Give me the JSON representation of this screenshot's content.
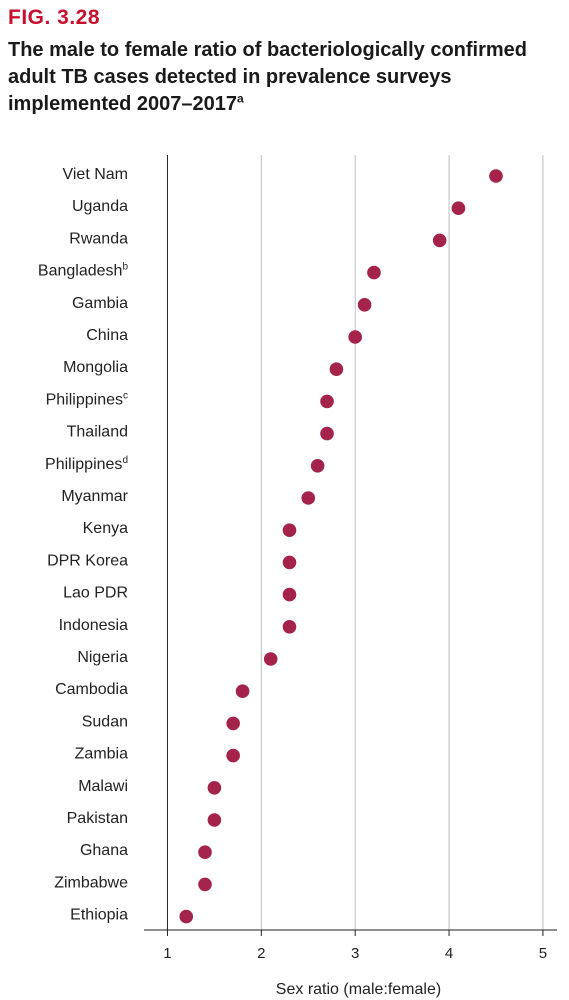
{
  "figure": {
    "label": "FIG. 3.28",
    "title": "The male to female ratio of bacteriologically confirmed adult TB cases detected in prevalence surveys implemented 2007–2017",
    "title_note": "a"
  },
  "colors": {
    "accent": "#c8102e",
    "point": "#a3234a",
    "grid": "#bdbdbd",
    "axis": "#222222"
  },
  "chart_data": {
    "type": "scatter",
    "title": "The male to female ratio of bacteriologically confirmed adult TB cases detected in prevalence surveys implemented 2007–2017",
    "xlabel": "Sex ratio (male:female)",
    "ylabel": "",
    "xlim": [
      0.75,
      5.15
    ],
    "xticks": [
      1,
      2,
      3,
      4,
      5
    ],
    "grid": "vertical",
    "legend": "none",
    "categories": [
      {
        "label": "Viet Nam",
        "note": ""
      },
      {
        "label": "Uganda",
        "note": ""
      },
      {
        "label": "Rwanda",
        "note": ""
      },
      {
        "label": "Bangladesh",
        "note": "b"
      },
      {
        "label": "Gambia",
        "note": ""
      },
      {
        "label": "China",
        "note": ""
      },
      {
        "label": "Mongolia",
        "note": ""
      },
      {
        "label": "Philippines",
        "note": "c"
      },
      {
        "label": "Thailand",
        "note": ""
      },
      {
        "label": "Philippines",
        "note": "d"
      },
      {
        "label": "Myanmar",
        "note": ""
      },
      {
        "label": "Kenya",
        "note": ""
      },
      {
        "label": "DPR Korea",
        "note": ""
      },
      {
        "label": "Lao PDR",
        "note": ""
      },
      {
        "label": "Indonesia",
        "note": ""
      },
      {
        "label": "Nigeria",
        "note": ""
      },
      {
        "label": "Cambodia",
        "note": ""
      },
      {
        "label": "Sudan",
        "note": ""
      },
      {
        "label": "Zambia",
        "note": ""
      },
      {
        "label": "Malawi",
        "note": ""
      },
      {
        "label": "Pakistan",
        "note": ""
      },
      {
        "label": "Ghana",
        "note": ""
      },
      {
        "label": "Zimbabwe",
        "note": ""
      },
      {
        "label": "Ethiopia",
        "note": ""
      }
    ],
    "values": [
      4.5,
      4.1,
      3.9,
      3.2,
      3.1,
      3.0,
      2.8,
      2.7,
      2.7,
      2.6,
      2.5,
      2.3,
      2.3,
      2.3,
      2.3,
      2.1,
      1.8,
      1.7,
      1.7,
      1.5,
      1.5,
      1.4,
      1.4,
      1.2
    ]
  }
}
